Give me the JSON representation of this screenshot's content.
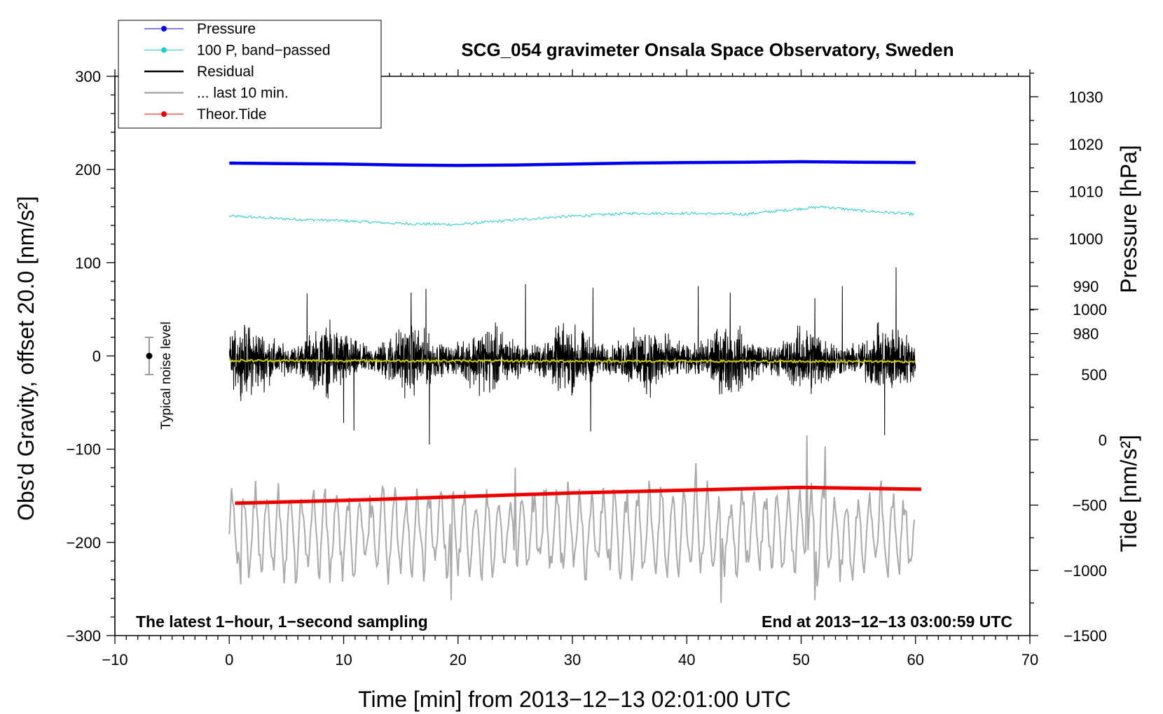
{
  "chart_data": {
    "type": "line",
    "title": "SCG_054 gravimeter Onsala Space Observatory, Sweden",
    "xlabel": "Time [min] from 2013−12−13 02:01:00 UTC",
    "ylabel_left": "Obs'd Gravity, offset 20.0 [nm/s²]",
    "ylabel_right_top": "Pressure [hPa]",
    "ylabel_right_bottom": "Tide [nm/s²]",
    "xlim": [
      -10,
      70
    ],
    "ylim_left": [
      -300,
      300
    ],
    "x_ticks": [
      -10,
      0,
      10,
      20,
      30,
      40,
      50,
      60,
      70
    ],
    "x_tick_labels": [
      "−10",
      "0",
      "10",
      "20",
      "30",
      "40",
      "50",
      "60",
      "70"
    ],
    "y_left_ticks": [
      300,
      200,
      100,
      0,
      -100,
      -200,
      -300
    ],
    "y_left_tick_labels": [
      "300",
      "200",
      "100",
      "0",
      "−100",
      "−200",
      "−300"
    ],
    "pressure_axis": {
      "ticks": [
        1030,
        1020,
        1010,
        1000,
        990,
        980
      ],
      "tick_labels": [
        "1030",
        "1020",
        "1010",
        "1000",
        "990",
        "980"
      ],
      "map_p1": 1030,
      "map_y1": 278,
      "map_p2": 980,
      "map_y2": 24
    },
    "tide_axis": {
      "ticks": [
        1000,
        500,
        0,
        -500,
        -1000,
        -1500
      ],
      "tick_labels": [
        "1000",
        "500",
        "0",
        "−500",
        "−1000",
        "−1500"
      ],
      "map_t1": 1000,
      "map_y1": 50,
      "map_t2": -1500,
      "map_y2": -300
    },
    "legend": {
      "position": "top-left",
      "entries": [
        {
          "label": "Pressure",
          "color": "#0000ee",
          "marker": true
        },
        {
          "label": "100 P, band−passed",
          "color": "#22cccc",
          "marker": true
        },
        {
          "label": "Residual",
          "color": "#000000",
          "marker": false
        },
        {
          "label": "... last 10 min.",
          "color": "#aaaaaa",
          "marker": false
        },
        {
          "label": "Theor.Tide",
          "color": "#ee0000",
          "marker": true
        }
      ]
    },
    "annotations": {
      "left": "The latest 1−hour, 1−second sampling",
      "right": "End at 2013−12−13 03:00:59 UTC",
      "noise_label": "Typical noise level"
    },
    "noise_bar": {
      "x": -7,
      "y": 0,
      "err": 20
    },
    "series": [
      {
        "name": "Pressure",
        "color": "#0000ee",
        "x": [
          0,
          5,
          10,
          15,
          20,
          25,
          30,
          35,
          40,
          45,
          50,
          55,
          60
        ],
        "y": [
          1016.0,
          1015.9,
          1015.8,
          1015.6,
          1015.5,
          1015.6,
          1015.8,
          1016.0,
          1016.1,
          1016.2,
          1016.3,
          1016.2,
          1016.1
        ]
      },
      {
        "name": "100 P, band−passed",
        "color": "#22cccc",
        "x": [
          0,
          5,
          10,
          15,
          20,
          25,
          30,
          35,
          40,
          45,
          50,
          52,
          55,
          60
        ],
        "y": [
          150,
          147,
          145,
          142,
          141,
          146,
          150,
          153,
          153,
          152,
          158,
          160,
          156,
          152
        ]
      },
      {
        "name": "Residual",
        "color": "#000000",
        "x_range": [
          0,
          60
        ],
        "envelope": 50,
        "spikes": [
          {
            "x": 17.5,
            "y": -95
          },
          {
            "x": 17.2,
            "y": 72
          },
          {
            "x": 15.9,
            "y": 68
          },
          {
            "x": 25.9,
            "y": 77
          },
          {
            "x": 31.8,
            "y": 73
          },
          {
            "x": 58.3,
            "y": 95
          },
          {
            "x": 41.0,
            "y": 75
          },
          {
            "x": 53.6,
            "y": 75
          },
          {
            "x": 10.0,
            "y": -72
          },
          {
            "x": 10.9,
            "y": -80
          },
          {
            "x": 31.6,
            "y": -81
          },
          {
            "x": 57.3,
            "y": -85
          },
          {
            "x": 6.8,
            "y": 67
          },
          {
            "x": 43.8,
            "y": 68
          },
          {
            "x": 51.2,
            "y": 62
          }
        ]
      },
      {
        "name": "Residual mean",
        "color": "#cccc00",
        "x": [
          0,
          60
        ],
        "y": [
          -5,
          -6
        ]
      },
      {
        "name": "... last 10 min.",
        "color": "#aaaaaa",
        "x_range": [
          0,
          60
        ],
        "mean": -190,
        "amplitude": 40,
        "peaks": [
          {
            "x": 50.5,
            "y": -85
          },
          {
            "x": 19.4,
            "y": -262
          },
          {
            "x": 43.0,
            "y": -265
          },
          {
            "x": 51.2,
            "y": -262
          },
          {
            "x": 25.0,
            "y": -120
          },
          {
            "x": 40.8,
            "y": -115
          },
          {
            "x": 52.1,
            "y": -97
          },
          {
            "x": 1.0,
            "y": -245
          }
        ]
      },
      {
        "name": "Theor.Tide",
        "color": "#ee0000",
        "x": [
          0.5,
          10,
          20,
          30,
          40,
          50,
          60.5
        ],
        "y": [
          -158,
          -155,
          -151,
          -147,
          -144,
          -141,
          -143
        ]
      }
    ]
  }
}
